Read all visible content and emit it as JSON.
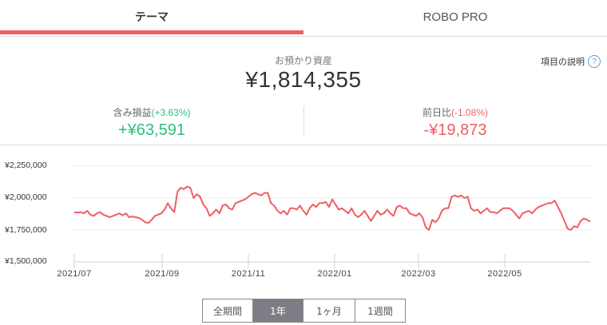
{
  "tabs": [
    {
      "label": "テーマ",
      "active": true
    },
    {
      "label": "ROBO PRO",
      "active": false
    }
  ],
  "colors": {
    "accent": "#ef5f62",
    "positive": "#2fbf7f",
    "negative": "#ef5f62",
    "line": "#ef5f62",
    "help_icon": "#5b9bd5",
    "active_range_bg": "#7d7d85"
  },
  "summary": {
    "assets_label": "お預かり資産",
    "assets_value": "¥1,814,355",
    "help_label": "項目の説明",
    "help_icon": "?"
  },
  "stats": {
    "unrealized": {
      "label": "含み損益",
      "pct": "(+3.63%)",
      "value": "+¥63,591"
    },
    "daily": {
      "label": "前日比",
      "pct": "(-1.08%)",
      "value": "-¥19,873"
    }
  },
  "range_buttons": [
    {
      "label": "全期間",
      "active": false
    },
    {
      "label": "1年",
      "active": true
    },
    {
      "label": "1ヶ月",
      "active": false
    },
    {
      "label": "1週間",
      "active": false
    }
  ],
  "chart_data": {
    "type": "line",
    "title": "",
    "xlabel": "",
    "ylabel": "",
    "ylim": [
      1500000,
      2250000
    ],
    "y_ticks": [
      "¥2,250,000",
      "¥2,000,000",
      "¥1,750,000",
      "¥1,500,000"
    ],
    "y_tick_values": [
      2250000,
      2000000,
      1750000,
      1500000
    ],
    "x_ticks": [
      "2021/07",
      "2021/09",
      "2021/11",
      "2022/01",
      "2022/03",
      "2022/05"
    ],
    "grid": "horizontal-dotted",
    "legend": "none",
    "series": [
      {
        "name": "お預かり資産",
        "x_start": "2021/07",
        "x_end": "2022/06",
        "values": [
          1890000,
          1885000,
          1890000,
          1880000,
          1900000,
          1870000,
          1860000,
          1880000,
          1890000,
          1870000,
          1860000,
          1850000,
          1860000,
          1870000,
          1880000,
          1865000,
          1880000,
          1850000,
          1855000,
          1850000,
          1845000,
          1830000,
          1810000,
          1805000,
          1830000,
          1860000,
          1870000,
          1880000,
          1910000,
          1960000,
          1920000,
          1890000,
          2050000,
          2080000,
          2070000,
          2090000,
          2080000,
          2000000,
          2030000,
          2010000,
          1950000,
          1920000,
          1860000,
          1880000,
          1910000,
          1880000,
          1940000,
          1950000,
          1920000,
          1910000,
          1960000,
          1970000,
          1980000,
          1990000,
          2010000,
          2030000,
          2040000,
          2030000,
          2020000,
          2040000,
          2040000,
          1960000,
          1940000,
          1900000,
          1880000,
          1900000,
          1870000,
          1920000,
          1920000,
          1910000,
          1940000,
          1900000,
          1870000,
          1920000,
          1950000,
          1930000,
          1960000,
          1960000,
          1970000,
          1930000,
          1990000,
          1950000,
          1910000,
          1920000,
          1900000,
          1880000,
          1920000,
          1870000,
          1850000,
          1870000,
          1900000,
          1860000,
          1820000,
          1860000,
          1900000,
          1870000,
          1880000,
          1910000,
          1880000,
          1860000,
          1930000,
          1940000,
          1920000,
          1920000,
          1880000,
          1870000,
          1860000,
          1880000,
          1850000,
          1770000,
          1750000,
          1830000,
          1810000,
          1840000,
          1900000,
          1920000,
          1920000,
          2010000,
          2020000,
          2010000,
          2020000,
          2000000,
          2010000,
          1920000,
          1900000,
          1910000,
          1880000,
          1900000,
          1920000,
          1890000,
          1890000,
          1880000,
          1900000,
          1920000,
          1920000,
          1920000,
          1900000,
          1870000,
          1840000,
          1880000,
          1890000,
          1900000,
          1880000,
          1910000,
          1930000,
          1940000,
          1950000,
          1960000,
          1960000,
          1980000,
          1930000,
          1880000,
          1820000,
          1760000,
          1750000,
          1780000,
          1770000,
          1820000,
          1840000,
          1830000,
          1814355
        ]
      }
    ]
  }
}
